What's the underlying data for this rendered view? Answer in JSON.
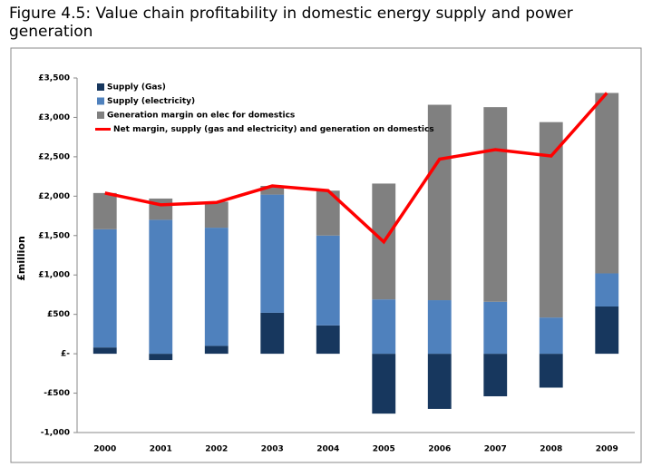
{
  "chart_data": {
    "type": "bar",
    "title": "Figure 4.5: Value chain profitability in domestic energy supply and power generation",
    "y_label": "£million",
    "categories": [
      "2000",
      "2001",
      "2002",
      "2003",
      "2004",
      "2005",
      "2006",
      "2007",
      "2008",
      "2009"
    ],
    "series": [
      {
        "name": "Supply (Gas)",
        "color": "#17375e",
        "type": "bar",
        "values": [
          80,
          -80,
          100,
          520,
          360,
          -760,
          -700,
          -540,
          -430,
          600
        ]
      },
      {
        "name": "Supply (electricity)",
        "color": "#4f81bd",
        "type": "bar",
        "values": [
          1500,
          1700,
          1500,
          1500,
          1140,
          690,
          680,
          660,
          460,
          420
        ]
      },
      {
        "name": "Generation margin on elec for domestics",
        "color": "#808080",
        "type": "bar",
        "values": [
          460,
          270,
          330,
          110,
          570,
          1470,
          2480,
          2470,
          2480,
          2290
        ]
      },
      {
        "name": "Net margin, supply (gas and electricity) and generation on domestics",
        "color": "#ff0000",
        "type": "line",
        "values": [
          2040,
          1890,
          1920,
          2130,
          2070,
          1420,
          2470,
          2590,
          2510,
          3310
        ]
      }
    ],
    "ylim": [
      -1000,
      3500
    ],
    "yticks": [
      {
        "value": -1000,
        "label": "-1,000"
      },
      {
        "value": -500,
        "label": "-£500"
      },
      {
        "value": 0,
        "label": "£-"
      },
      {
        "value": 500,
        "label": "£500"
      },
      {
        "value": 1000,
        "label": "£1,000"
      },
      {
        "value": 1500,
        "label": "£1,500"
      },
      {
        "value": 2000,
        "label": "£2,000"
      },
      {
        "value": 2500,
        "label": "£2,500"
      },
      {
        "value": 3000,
        "label": "£3,000"
      },
      {
        "value": 3500,
        "label": "£3,500"
      }
    ],
    "legend": "top-left"
  }
}
